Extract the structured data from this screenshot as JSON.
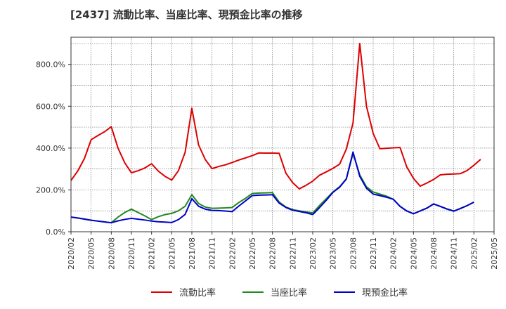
{
  "chart_data": {
    "type": "line",
    "title": "[2437]  流動比率、当座比率、現預金比率の推移",
    "x_ticks": [
      "2020/02",
      "2020/05",
      "2020/08",
      "2020/11",
      "2021/02",
      "2021/05",
      "2021/08",
      "2021/11",
      "2022/02",
      "2022/05",
      "2022/08",
      "2022/11",
      "2023/02",
      "2023/05",
      "2023/08",
      "2023/11",
      "2024/02",
      "2024/05",
      "2024/08",
      "2024/11",
      "2025/02",
      "2025/05"
    ],
    "y_ticks": [
      "0.0%",
      "200.0%",
      "400.0%",
      "600.0%",
      "800.0%"
    ],
    "y_tick_values": [
      0,
      200,
      400,
      600,
      800
    ],
    "ylim": [
      0,
      930
    ],
    "x_range_months": [
      0,
      63
    ],
    "grid": true,
    "legend_position": "bottom-center",
    "series": [
      {
        "name": "流動比率",
        "color": "#dd0000",
        "points": [
          [
            0,
            245
          ],
          [
            1,
            290
          ],
          [
            2,
            350
          ],
          [
            3,
            440
          ],
          [
            4,
            460
          ],
          [
            5,
            478
          ],
          [
            6,
            502
          ],
          [
            7,
            400
          ],
          [
            8,
            330
          ],
          [
            9,
            282
          ],
          [
            10,
            292
          ],
          [
            11,
            305
          ],
          [
            12,
            325
          ],
          [
            13,
            290
          ],
          [
            14,
            265
          ],
          [
            15,
            247
          ],
          [
            16,
            292
          ],
          [
            17,
            380
          ],
          [
            18,
            590
          ],
          [
            19,
            415
          ],
          [
            20,
            345
          ],
          [
            21,
            302
          ],
          [
            22,
            312
          ],
          [
            23,
            320
          ],
          [
            24,
            331
          ],
          [
            25,
            343
          ],
          [
            26,
            353
          ],
          [
            27,
            364
          ],
          [
            28,
            377
          ],
          [
            29,
            376
          ],
          [
            30,
            376
          ],
          [
            31,
            375
          ],
          [
            32,
            280
          ],
          [
            33,
            235
          ],
          [
            34,
            205
          ],
          [
            35,
            222
          ],
          [
            36,
            242
          ],
          [
            37,
            270
          ],
          [
            38,
            286
          ],
          [
            39,
            303
          ],
          [
            40,
            323
          ],
          [
            41,
            395
          ],
          [
            42,
            520
          ],
          [
            43,
            900
          ],
          [
            44,
            600
          ],
          [
            45,
            470
          ],
          [
            46,
            397
          ],
          [
            47,
            399
          ],
          [
            48,
            401
          ],
          [
            49,
            403
          ],
          [
            50,
            310
          ],
          [
            51,
            255
          ],
          [
            52,
            218
          ],
          [
            53,
            233
          ],
          [
            54,
            250
          ],
          [
            55,
            272
          ],
          [
            56,
            275
          ],
          [
            57,
            276
          ],
          [
            58,
            278
          ],
          [
            59,
            293
          ],
          [
            60,
            318
          ],
          [
            61,
            346
          ]
        ]
      },
      {
        "name": "当座比率",
        "color": "#228822",
        "points": [
          [
            0,
            70
          ],
          [
            1,
            66
          ],
          [
            2,
            60
          ],
          [
            3,
            55
          ],
          [
            4,
            51
          ],
          [
            5,
            47
          ],
          [
            6,
            43
          ],
          [
            7,
            70
          ],
          [
            8,
            92
          ],
          [
            9,
            108
          ],
          [
            10,
            92
          ],
          [
            11,
            76
          ],
          [
            12,
            58
          ],
          [
            13,
            72
          ],
          [
            14,
            82
          ],
          [
            15,
            88
          ],
          [
            16,
            100
          ],
          [
            17,
            122
          ],
          [
            18,
            177
          ],
          [
            19,
            135
          ],
          [
            20,
            118
          ],
          [
            21,
            112
          ],
          [
            22,
            113
          ],
          [
            23,
            114
          ],
          [
            24,
            116
          ],
          [
            25,
            140
          ],
          [
            26,
            160
          ],
          [
            27,
            183
          ],
          [
            28,
            185
          ],
          [
            29,
            186
          ],
          [
            30,
            187
          ],
          [
            31,
            142
          ],
          [
            32,
            118
          ],
          [
            33,
            106
          ],
          [
            34,
            100
          ],
          [
            35,
            95
          ],
          [
            36,
            90
          ],
          [
            37,
            125
          ],
          [
            38,
            157
          ],
          [
            39,
            190
          ],
          [
            40,
            215
          ],
          [
            41,
            253
          ],
          [
            42,
            375
          ],
          [
            43,
            272
          ],
          [
            44,
            215
          ],
          [
            45,
            190
          ],
          [
            46,
            180
          ],
          [
            47,
            170
          ],
          [
            48,
            155
          ],
          [
            49,
            122
          ],
          [
            50,
            100
          ],
          [
            51,
            86
          ],
          [
            52,
            100
          ],
          [
            53,
            113
          ],
          [
            54,
            133
          ],
          [
            55,
            121
          ],
          [
            56,
            108
          ],
          [
            57,
            98
          ],
          [
            58,
            112
          ],
          [
            59,
            125
          ],
          [
            60,
            141
          ]
        ]
      },
      {
        "name": "現預金比率",
        "color": "#0000cc",
        "points": [
          [
            0,
            70
          ],
          [
            1,
            66
          ],
          [
            2,
            61
          ],
          [
            3,
            55
          ],
          [
            4,
            51
          ],
          [
            5,
            47
          ],
          [
            6,
            43
          ],
          [
            7,
            52
          ],
          [
            8,
            59
          ],
          [
            9,
            64
          ],
          [
            10,
            60
          ],
          [
            11,
            56
          ],
          [
            12,
            51
          ],
          [
            13,
            48
          ],
          [
            14,
            46
          ],
          [
            15,
            44
          ],
          [
            16,
            58
          ],
          [
            17,
            83
          ],
          [
            18,
            158
          ],
          [
            19,
            122
          ],
          [
            20,
            108
          ],
          [
            21,
            102
          ],
          [
            22,
            101
          ],
          [
            23,
            99
          ],
          [
            24,
            96
          ],
          [
            25,
            123
          ],
          [
            26,
            148
          ],
          [
            27,
            173
          ],
          [
            28,
            175
          ],
          [
            29,
            176
          ],
          [
            30,
            177
          ],
          [
            31,
            137
          ],
          [
            32,
            116
          ],
          [
            33,
            103
          ],
          [
            34,
            97
          ],
          [
            35,
            91
          ],
          [
            36,
            82
          ],
          [
            37,
            115
          ],
          [
            38,
            150
          ],
          [
            39,
            188
          ],
          [
            40,
            213
          ],
          [
            41,
            252
          ],
          [
            42,
            381
          ],
          [
            43,
            265
          ],
          [
            44,
            208
          ],
          [
            45,
            180
          ],
          [
            46,
            173
          ],
          [
            47,
            165
          ],
          [
            48,
            155
          ],
          [
            49,
            121
          ],
          [
            50,
            99
          ],
          [
            51,
            86
          ],
          [
            52,
            99
          ],
          [
            53,
            113
          ],
          [
            54,
            133
          ],
          [
            55,
            121
          ],
          [
            56,
            109
          ],
          [
            57,
            99
          ],
          [
            58,
            111
          ],
          [
            59,
            125
          ],
          [
            60,
            142
          ]
        ]
      }
    ]
  }
}
